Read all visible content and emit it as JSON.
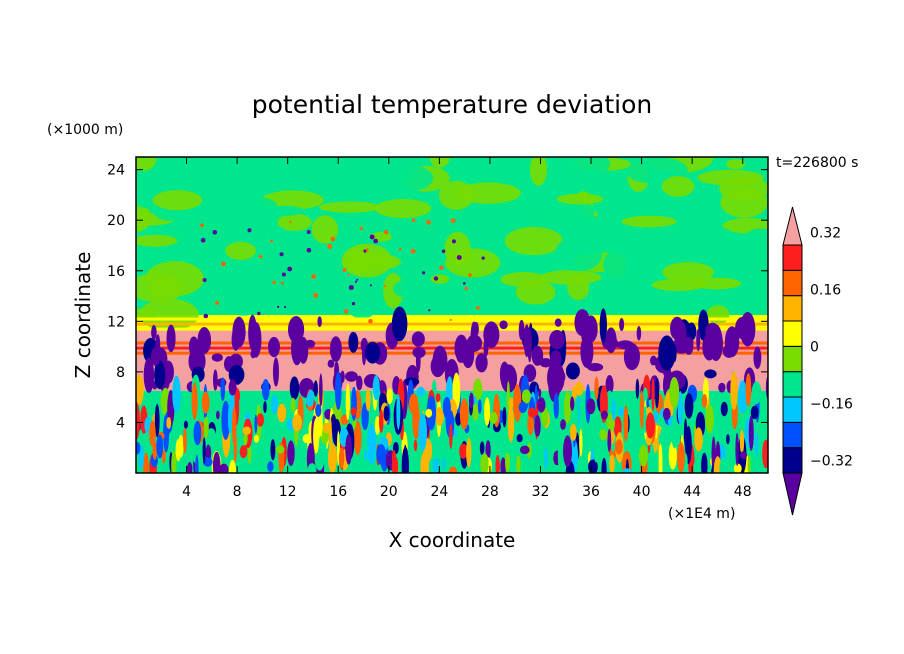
{
  "chart_data": {
    "type": "heatmap",
    "title": "potential temperature deviation",
    "time_label": "t=226800 s",
    "xlabel": "X coordinate",
    "ylabel": "Z coordinate",
    "x_unit": "(×1E4 m)",
    "y_unit": "(×1000 m)",
    "xlim": [
      0,
      50
    ],
    "ylim": [
      0,
      25
    ],
    "x_ticks": [
      "4",
      "8",
      "12",
      "16",
      "20",
      "24",
      "28",
      "32",
      "36",
      "40",
      "44",
      "48"
    ],
    "y_ticks": [
      "4",
      "8",
      "12",
      "16",
      "20",
      "24"
    ],
    "colorbar": {
      "levels": [
        -0.4,
        -0.32,
        -0.24,
        -0.16,
        -0.08,
        0,
        0.08,
        0.16,
        0.24,
        0.32,
        0.4
      ],
      "tick_labels": [
        "0.32",
        "0.16",
        "0",
        "−0.16",
        "−0.32"
      ],
      "tick_values": [
        0.32,
        0.16,
        0,
        -0.16,
        -0.32
      ],
      "colors": [
        "#5a00a0",
        "#00008c",
        "#0050ff",
        "#00c8ff",
        "#00e68c",
        "#78dc00",
        "#ffff00",
        "#ffb400",
        "#ff6400",
        "#ff1e1e",
        "#f5a0a0"
      ],
      "extends": "both"
    },
    "field_bands": [
      {
        "z_range": [
          12.5,
          25
        ],
        "description": "upper layer",
        "dominant": [
          "#00e68c",
          "#78dc00"
        ]
      },
      {
        "z_range": [
          11.5,
          12.5
        ],
        "description": "stable band",
        "dominant": [
          "#ffff00",
          "#ffb400"
        ]
      },
      {
        "z_range": [
          9.5,
          11.5
        ],
        "description": "tropopause band",
        "dominant": [
          "#f5a0a0",
          "#ff6400",
          "#ff1e1e"
        ]
      },
      {
        "z_range": [
          6.5,
          9.5
        ],
        "description": "pink / purple plumes",
        "dominant": [
          "#f5a0a0",
          "#5a00a0"
        ]
      },
      {
        "z_range": [
          0,
          6.5
        ],
        "description": "turbulent lower layer",
        "dominant": [
          "#00e68c",
          "#00c8ff",
          "#ffff00",
          "#ff6400",
          "#0050ff",
          "#5a00a0"
        ]
      }
    ]
  }
}
